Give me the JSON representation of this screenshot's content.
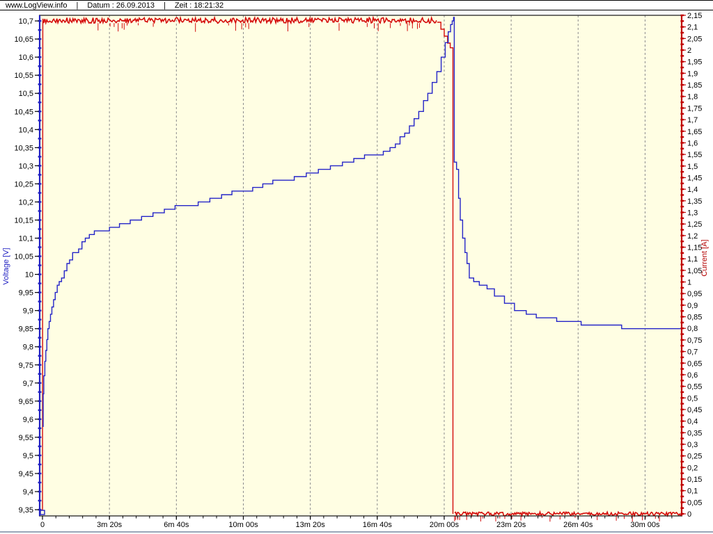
{
  "header": {
    "site": "www.LogView.info",
    "separator": "|",
    "date_label": "Datum : 26.09.2013",
    "time_label": "Zeit : 18:21:32"
  },
  "chart_data": {
    "type": "line",
    "title": "",
    "xlabel": "",
    "grid": "vertical-dashed",
    "legend": "none",
    "plot_background": "#fffee3",
    "gridline_color": "#8c8c8c",
    "x_axis": {
      "unit": "time",
      "tick_values_s": [
        0,
        200,
        400,
        600,
        800,
        1000,
        1200,
        1400,
        1600,
        1800
      ],
      "tick_labels": [
        "0",
        "3m 20s",
        "6m 40s",
        "10m 00s",
        "13m 20s",
        "16m 40s",
        "20m 00s",
        "23m 20s",
        "26m 40s",
        "30m 00s"
      ],
      "minor_tick_step_s": 40,
      "max_s": 1906
    },
    "y_left": {
      "title": "Voltage [V]",
      "color": "#2323c3",
      "tick_values": [
        10.7,
        10.65,
        10.6,
        10.55,
        10.5,
        10.45,
        10.4,
        10.35,
        10.3,
        10.25,
        10.2,
        10.15,
        10.1,
        10.05,
        10,
        9.95,
        9.9,
        9.85,
        9.8,
        9.75,
        9.7,
        9.65,
        9.6,
        9.55,
        9.5,
        9.45,
        9.4,
        9.35
      ],
      "tick_labels": [
        "10,7",
        "10,65",
        "10,6",
        "10,55",
        "10,5",
        "10,45",
        "10,4",
        "10,35",
        "10,3",
        "10,25",
        "10,2",
        "10,15",
        "10,1",
        "10,05",
        "10",
        "9,95",
        "9,9",
        "9,85",
        "9,8",
        "9,75",
        "9,7",
        "9,65",
        "9,6",
        "9,55",
        "9,5",
        "9,45",
        "9,4",
        "9,35"
      ],
      "minor_tick_step": 0.025
    },
    "y_right": {
      "title": "Current  [A]",
      "color": "#b40404",
      "tick_values": [
        2.15,
        2.1,
        2.05,
        2,
        1.95,
        1.9,
        1.85,
        1.8,
        1.75,
        1.7,
        1.65,
        1.6,
        1.55,
        1.5,
        1.45,
        1.4,
        1.35,
        1.3,
        1.25,
        1.2,
        1.15,
        1.1,
        1.05,
        1,
        0.95,
        0.9,
        0.85,
        0.8,
        0.75,
        0.7,
        0.65,
        0.6,
        0.55,
        0.5,
        0.45,
        0.4,
        0.35,
        0.3,
        0.25,
        0.2,
        0.15,
        0.1,
        0.05,
        0
      ],
      "tick_labels": [
        "2,15",
        "2,1",
        "2,05",
        "2",
        "1,95",
        "1,9",
        "1,85",
        "1,8",
        "1,75",
        "1,7",
        "1,65",
        "1,6",
        "1,55",
        "1,5",
        "1,45",
        "1,4",
        "1,35",
        "1,3",
        "1,25",
        "1,2",
        "1,15",
        "1,1",
        "1,05",
        "1",
        "0,95",
        "0,9",
        "0,85",
        "0,8",
        "0,75",
        "0,7",
        "0,65",
        "0,6",
        "0,55",
        "0,5",
        "0,45",
        "0,4",
        "0,35",
        "0,3",
        "0,25",
        "0,2",
        "0,15",
        "0,1",
        "0,05",
        "0"
      ],
      "minor_tick_step": 0.025
    },
    "series": [
      {
        "name": "Voltage [V]",
        "color": "#2424c8",
        "quantize_step_V": 0.01,
        "points_t_V": [
          [
            0,
            9.58
          ],
          [
            2,
            9.67
          ],
          [
            4,
            9.72
          ],
          [
            7,
            9.76
          ],
          [
            10,
            9.79
          ],
          [
            13,
            9.82
          ],
          [
            16,
            9.845
          ],
          [
            20,
            9.87
          ],
          [
            24,
            9.89
          ],
          [
            28,
            9.91
          ],
          [
            33,
            9.93
          ],
          [
            38,
            9.95
          ],
          [
            44,
            9.965
          ],
          [
            50,
            9.98
          ],
          [
            57,
            9.995
          ],
          [
            65,
            10.01
          ],
          [
            73,
            10.025
          ],
          [
            81,
            10.04
          ],
          [
            90,
            10.055
          ],
          [
            98,
            10.065
          ],
          [
            108,
            10.075
          ],
          [
            118,
            10.085
          ],
          [
            128,
            10.095
          ],
          [
            140,
            10.105
          ],
          [
            155,
            10.115
          ],
          [
            175,
            10.12
          ],
          [
            200,
            10.13
          ],
          [
            230,
            10.14
          ],
          [
            262,
            10.15
          ],
          [
            296,
            10.16
          ],
          [
            330,
            10.17
          ],
          [
            364,
            10.175
          ],
          [
            396,
            10.185
          ],
          [
            430,
            10.19
          ],
          [
            465,
            10.2
          ],
          [
            500,
            10.21
          ],
          [
            535,
            10.22
          ],
          [
            566,
            10.225
          ],
          [
            597,
            10.235
          ],
          [
            628,
            10.24
          ],
          [
            658,
            10.25
          ],
          [
            688,
            10.255
          ],
          [
            718,
            10.26
          ],
          [
            752,
            10.27
          ],
          [
            788,
            10.28
          ],
          [
            824,
            10.29
          ],
          [
            860,
            10.3
          ],
          [
            896,
            10.31
          ],
          [
            930,
            10.315
          ],
          [
            962,
            10.325
          ],
          [
            992,
            10.33
          ],
          [
            1018,
            10.34
          ],
          [
            1038,
            10.35
          ],
          [
            1054,
            10.36
          ],
          [
            1068,
            10.375
          ],
          [
            1082,
            10.39
          ],
          [
            1096,
            10.41
          ],
          [
            1110,
            10.43
          ],
          [
            1124,
            10.45
          ],
          [
            1138,
            10.475
          ],
          [
            1151,
            10.5
          ],
          [
            1164,
            10.53
          ],
          [
            1178,
            10.56
          ],
          [
            1191,
            10.6
          ],
          [
            1203,
            10.635
          ],
          [
            1212,
            10.665
          ],
          [
            1219,
            10.685
          ],
          [
            1224,
            10.7
          ],
          [
            1228,
            10.71
          ],
          [
            1230,
            10.31
          ],
          [
            1237,
            10.29
          ],
          [
            1243,
            10.21
          ],
          [
            1248,
            10.15
          ],
          [
            1255,
            10.1
          ],
          [
            1262,
            10.06
          ],
          [
            1268,
            10.025
          ],
          [
            1275,
            9.995
          ],
          [
            1288,
            9.975
          ],
          [
            1305,
            9.965
          ],
          [
            1328,
            9.958
          ],
          [
            1350,
            9.94
          ],
          [
            1380,
            9.92
          ],
          [
            1410,
            9.902
          ],
          [
            1445,
            9.89
          ],
          [
            1475,
            9.883
          ],
          [
            1505,
            9.875
          ],
          [
            1536,
            9.87
          ],
          [
            1570,
            9.865
          ],
          [
            1609,
            9.861
          ],
          [
            1650,
            9.858
          ],
          [
            1682,
            9.856
          ],
          [
            1730,
            9.854
          ],
          [
            1786,
            9.852
          ],
          [
            1850,
            9.851
          ],
          [
            1906,
            9.85
          ]
        ]
      },
      {
        "name": "Current  [A]",
        "color": "#d40a0a",
        "start_t": 0,
        "start_A": 0,
        "level_high_A": 2.128,
        "high_band": {
          "t0": 1,
          "t1": 1179,
          "jitter_A": 0.012,
          "spike_depth_A": 0.03,
          "spike_prob": 0.09
        },
        "decline_t_A": [
          [
            1179,
            2.12
          ],
          [
            1190,
            2.09
          ],
          [
            1200,
            2.06
          ],
          [
            1210,
            2.03
          ],
          [
            1218,
            2.01
          ],
          [
            1226,
            1.995
          ]
        ],
        "drop_t": 1226,
        "level_low_A": 0.0,
        "low_band": {
          "t0": 1231,
          "t1": 1906,
          "jitter_A": 0.008,
          "spike_depth_A": 0.018,
          "spike_prob": 0.11
        },
        "end_t": 1906
      }
    ],
    "axis_ranges": {
      "voltage_V": [
        9.333,
        10.716
      ],
      "current_A": [
        0,
        2.15
      ],
      "time_s": [
        0,
        1906
      ]
    }
  }
}
